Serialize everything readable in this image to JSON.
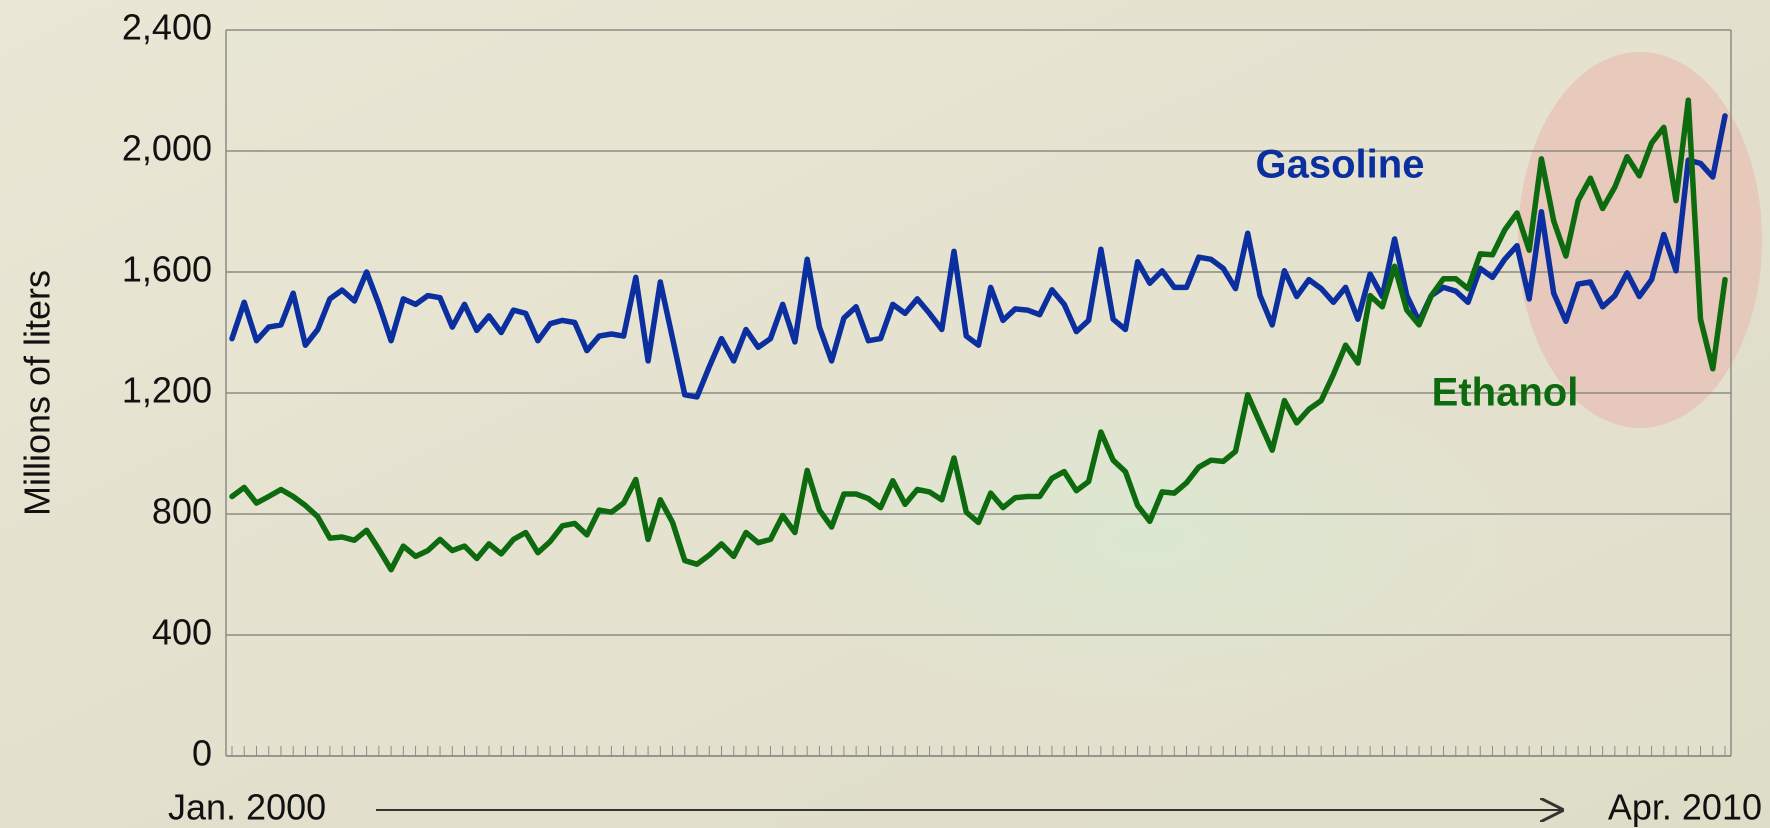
{
  "chart_data": {
    "type": "line",
    "y_label": "Millions of liters",
    "categories": [
      "Jan. 2000",
      null,
      null,
      null,
      null,
      null,
      null,
      null,
      null,
      null,
      null,
      null,
      null,
      null,
      null,
      null,
      null,
      null,
      null,
      null,
      null,
      null,
      null,
      null,
      null,
      null,
      null,
      null,
      null,
      null,
      null,
      null,
      null,
      null,
      null,
      null,
      null,
      null,
      null,
      null,
      null,
      null,
      null,
      null,
      null,
      null,
      null,
      null,
      null,
      null,
      null,
      null,
      null,
      null,
      null,
      null,
      null,
      null,
      null,
      null,
      null,
      null,
      null,
      null,
      null,
      null,
      null,
      null,
      null,
      null,
      null,
      null,
      null,
      null,
      null,
      null,
      null,
      null,
      null,
      null,
      null,
      null,
      null,
      null,
      null,
      null,
      null,
      null,
      null,
      null,
      null,
      null,
      null,
      null,
      null,
      null,
      null,
      null,
      null,
      null,
      null,
      null,
      null,
      null,
      null,
      null,
      null,
      null,
      null,
      null,
      null,
      null,
      null,
      null,
      null,
      null,
      null,
      null,
      null,
      null,
      null,
      null,
      "Apr. 2010"
    ],
    "series": [
      {
        "name": "Gasoline",
        "color": "#0b2f9e",
        "values": [
          1380,
          1500,
          1373,
          1418,
          1425,
          1530,
          1358,
          1410,
          1511,
          1540,
          1504,
          1600,
          1493,
          1373,
          1511,
          1493,
          1522,
          1515,
          1418,
          1493,
          1407,
          1455,
          1400,
          1474,
          1463,
          1373,
          1429,
          1440,
          1433,
          1340,
          1388,
          1395,
          1388,
          1582,
          1306,
          1567,
          1380,
          1194,
          1187,
          1287,
          1380,
          1306,
          1410,
          1351,
          1380,
          1493,
          1369,
          1642,
          1418,
          1306,
          1448,
          1485,
          1373,
          1380,
          1493,
          1463,
          1511,
          1463,
          1410,
          1668,
          1388,
          1358,
          1549,
          1440,
          1478,
          1474,
          1459,
          1541,
          1493,
          1403,
          1440,
          1675,
          1444,
          1410,
          1634,
          1563,
          1604,
          1549,
          1549,
          1649,
          1642,
          1612,
          1545,
          1728,
          1522,
          1425,
          1604,
          1519,
          1575,
          1545,
          1500,
          1549,
          1444,
          1593,
          1519,
          1709,
          1522,
          1437,
          1522,
          1549,
          1537,
          1500,
          1612,
          1582,
          1642,
          1687,
          1511,
          1799,
          1530,
          1437,
          1560,
          1567,
          1485,
          1522,
          1597,
          1519,
          1575,
          1724,
          1604,
          1970,
          1959,
          1914,
          2116
        ]
      },
      {
        "name": "Ethanol",
        "color": "#0e6a0e",
        "values": [
          858,
          888,
          836,
          858,
          881,
          858,
          828,
          791,
          720,
          724,
          713,
          746,
          683,
          616,
          694,
          660,
          679,
          716,
          679,
          694,
          653,
          701,
          668,
          716,
          739,
          672,
          709,
          761,
          769,
          731,
          813,
          806,
          836,
          914,
          716,
          847,
          772,
          646,
          634,
          664,
          701,
          660,
          739,
          705,
          716,
          795,
          739,
          944,
          813,
          757,
          866,
          866,
          851,
          821,
          910,
          832,
          881,
          873,
          847,
          985,
          806,
          772,
          869,
          821,
          854,
          858,
          858,
          918,
          940,
          877,
          907,
          1071,
          978,
          940,
          828,
          776,
          873,
          869,
          903,
          955,
          978,
          974,
          1007,
          1194,
          1101,
          1011,
          1175,
          1101,
          1146,
          1175,
          1261,
          1358,
          1299,
          1522,
          1485,
          1619,
          1474,
          1425,
          1522,
          1578,
          1578,
          1545,
          1660,
          1657,
          1739,
          1795,
          1672,
          1974,
          1769,
          1653,
          1836,
          1910,
          1810,
          1881,
          1981,
          1918,
          2026,
          2078,
          1836,
          2168,
          1444,
          1280,
          1575
        ]
      }
    ],
    "ylim": [
      0,
      2400
    ],
    "yticks": [
      0,
      {
        "value": 400,
        "label": "400"
      },
      {
        "value": 800,
        "label": "800"
      },
      {
        "value": 1200,
        "label": "1,200"
      },
      {
        "value": 1600,
        "label": "1,600"
      },
      {
        "value": 2000,
        "label": "2,000"
      },
      {
        "value": 2400,
        "label": "2,400"
      }
    ],
    "grid": true
  }
}
